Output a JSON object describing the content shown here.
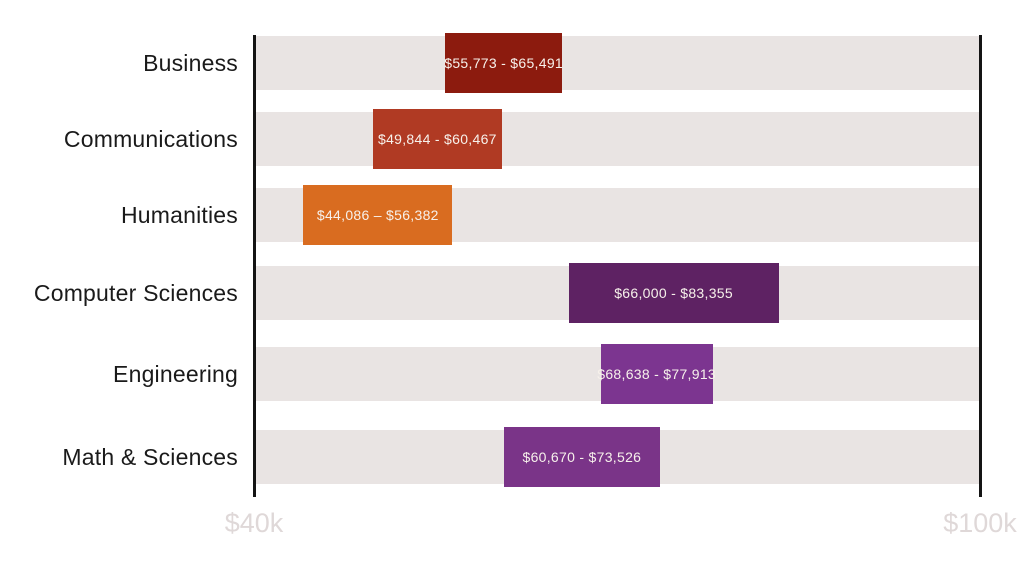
{
  "chart_data": {
    "type": "bar",
    "orientation": "horizontal",
    "subtype": "floating-range-bars",
    "title": "",
    "categories": [
      "Business",
      "Communications",
      "Humanities",
      "Computer Sciences",
      "Engineering",
      "Math & Sciences"
    ],
    "rows": [
      {
        "category": "Business",
        "low": 55773,
        "high": 65491,
        "label": "$55,773 - $65,491",
        "color": "#8C1B0E"
      },
      {
        "category": "Communications",
        "low": 49844,
        "high": 60467,
        "label": "$49,844 - $60,467",
        "color": "#B03A23"
      },
      {
        "category": "Humanities",
        "low": 44086,
        "high": 56382,
        "label": "$44,086 – $56,382",
        "color": "#D96C20"
      },
      {
        "category": "Computer Sciences",
        "low": 66000,
        "high": 83355,
        "label": "$66,000 - $83,355",
        "color": "#5E2263"
      },
      {
        "category": "Engineering",
        "low": 68638,
        "high": 77913,
        "label": "$68,638 - $77,913",
        "color": "#7C3590"
      },
      {
        "category": "Math & Sciences",
        "low": 60670,
        "high": 73526,
        "label": "$60,670 - $73,526",
        "color": "#7A3488"
      }
    ],
    "x_axis": {
      "min": 40000,
      "max": 100000,
      "tick_labels": [
        "$40k",
        "$100k"
      ]
    },
    "grid": "off",
    "legend": "none",
    "colors": {
      "track": "#E9E4E3",
      "axis_line": "#141414",
      "tick_label": "#DFD8D8",
      "value_label": "#F7F1EB",
      "category_label": "#1A1A1A",
      "background": "#FFFFFF"
    }
  }
}
